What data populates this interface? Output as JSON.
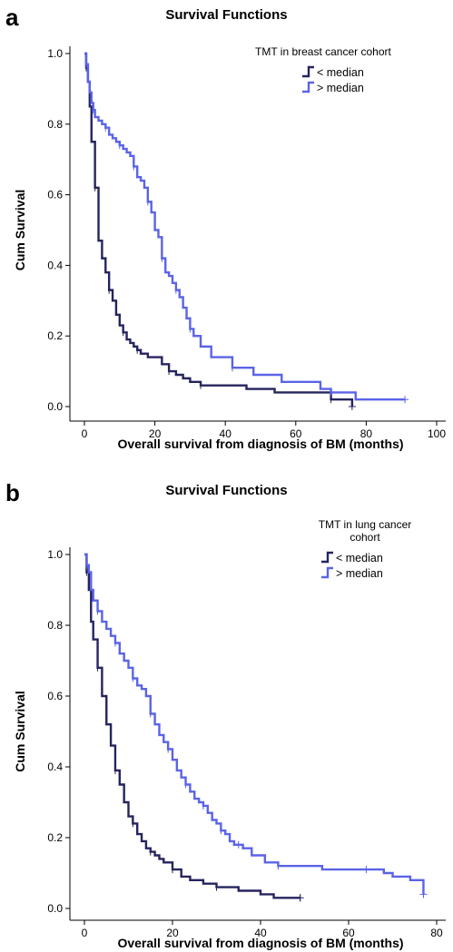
{
  "chart_data": [
    {
      "panel_label": "a",
      "type": "line",
      "step": true,
      "title": "Survival Functions",
      "xlabel": "Overall survival from diagnosis of BM (months)",
      "ylabel": "Cum Survival",
      "xlim": [
        0,
        100
      ],
      "ylim": [
        0,
        1.0
      ],
      "xticks": [
        0,
        20,
        40,
        60,
        80,
        100
      ],
      "yticks": [
        0.0,
        0.2,
        0.4,
        0.6,
        0.8,
        1.0
      ],
      "ytick_labels": [
        "0.0",
        "0.2",
        "0.4",
        "0.6",
        "0.8",
        "1.0"
      ],
      "grid": false,
      "legend": {
        "title": "TMT in breast cancer cohort",
        "placement": "top-right"
      },
      "series": [
        {
          "name": "< median",
          "color": "#25245e",
          "x": [
            0,
            0.5,
            1,
            1.5,
            2,
            3,
            4,
            5,
            6,
            7,
            8,
            9,
            10,
            11,
            12,
            13,
            14,
            15,
            16,
            18,
            22,
            24,
            26,
            28,
            30,
            33,
            38,
            46,
            54,
            70,
            72,
            76
          ],
          "y": [
            1.0,
            0.96,
            0.92,
            0.85,
            0.75,
            0.62,
            0.47,
            0.42,
            0.38,
            0.33,
            0.3,
            0.26,
            0.23,
            0.21,
            0.19,
            0.18,
            0.17,
            0.16,
            0.15,
            0.14,
            0.12,
            0.1,
            0.09,
            0.08,
            0.07,
            0.06,
            0.06,
            0.05,
            0.04,
            0.02,
            0.02,
            0.0
          ]
        },
        {
          "name": "> median",
          "color": "#5b63e8",
          "x": [
            0,
            0.5,
            1,
            1.5,
            2,
            2.5,
            3,
            4,
            5,
            6,
            7,
            8,
            9,
            10,
            11,
            12,
            13,
            14,
            15,
            16,
            17,
            18,
            19,
            20,
            21,
            22,
            23,
            24,
            25,
            26,
            27,
            28,
            29,
            30,
            31,
            33,
            36,
            42,
            48,
            56,
            67,
            70,
            77,
            91
          ],
          "y": [
            1.0,
            0.97,
            0.92,
            0.89,
            0.86,
            0.84,
            0.82,
            0.81,
            0.8,
            0.79,
            0.77,
            0.76,
            0.75,
            0.74,
            0.73,
            0.72,
            0.71,
            0.68,
            0.65,
            0.64,
            0.62,
            0.58,
            0.55,
            0.5,
            0.48,
            0.42,
            0.38,
            0.37,
            0.35,
            0.33,
            0.31,
            0.28,
            0.25,
            0.22,
            0.2,
            0.17,
            0.14,
            0.11,
            0.09,
            0.07,
            0.05,
            0.04,
            0.02,
            0.02
          ]
        }
      ]
    },
    {
      "panel_label": "b",
      "type": "line",
      "step": true,
      "title": "Survival Functions",
      "xlabel": "Overall survival from diagnosis of BM (months)",
      "ylabel": "Cum Survival",
      "xlim": [
        0,
        80
      ],
      "ylim": [
        0,
        1.0
      ],
      "xticks": [
        0,
        20,
        40,
        60,
        80
      ],
      "yticks": [
        0.0,
        0.2,
        0.4,
        0.6,
        0.8,
        1.0
      ],
      "ytick_labels": [
        "0.0",
        "0.2",
        "0.4",
        "0.6",
        "0.8",
        "1.0"
      ],
      "grid": false,
      "legend": {
        "title": "TMT in lung cancer cohort",
        "placement": "top-right"
      },
      "series": [
        {
          "name": "< median",
          "color": "#25245e",
          "x": [
            0,
            0.5,
            1,
            1.5,
            2,
            3,
            4,
            5,
            6,
            7,
            8,
            9,
            10,
            11,
            12,
            13,
            14,
            15,
            16,
            17,
            18,
            20,
            22,
            24,
            27,
            30,
            35,
            40,
            43,
            49
          ],
          "y": [
            1.0,
            0.95,
            0.9,
            0.81,
            0.76,
            0.68,
            0.6,
            0.52,
            0.46,
            0.39,
            0.35,
            0.3,
            0.26,
            0.24,
            0.21,
            0.19,
            0.17,
            0.16,
            0.15,
            0.14,
            0.13,
            0.11,
            0.09,
            0.08,
            0.07,
            0.06,
            0.05,
            0.04,
            0.03,
            0.03
          ]
        },
        {
          "name": "> median",
          "color": "#5b63e8",
          "x": [
            0,
            0.5,
            1,
            1.5,
            2,
            3,
            4,
            5,
            6,
            7,
            8,
            9,
            10,
            11,
            12,
            13,
            14,
            15,
            16,
            17,
            18,
            19,
            20,
            21,
            22,
            23,
            24,
            25,
            26,
            27,
            28,
            29,
            30,
            31,
            32,
            33,
            34,
            35,
            36,
            38,
            41,
            44,
            48,
            54,
            60,
            64,
            68,
            70,
            74,
            77
          ],
          "y": [
            1.0,
            0.97,
            0.95,
            0.9,
            0.87,
            0.84,
            0.81,
            0.79,
            0.77,
            0.75,
            0.72,
            0.7,
            0.68,
            0.65,
            0.63,
            0.62,
            0.6,
            0.55,
            0.52,
            0.49,
            0.47,
            0.45,
            0.42,
            0.39,
            0.37,
            0.35,
            0.33,
            0.31,
            0.3,
            0.29,
            0.27,
            0.25,
            0.24,
            0.22,
            0.21,
            0.19,
            0.18,
            0.18,
            0.17,
            0.15,
            0.13,
            0.12,
            0.12,
            0.11,
            0.11,
            0.11,
            0.1,
            0.09,
            0.08,
            0.04
          ]
        }
      ]
    }
  ]
}
